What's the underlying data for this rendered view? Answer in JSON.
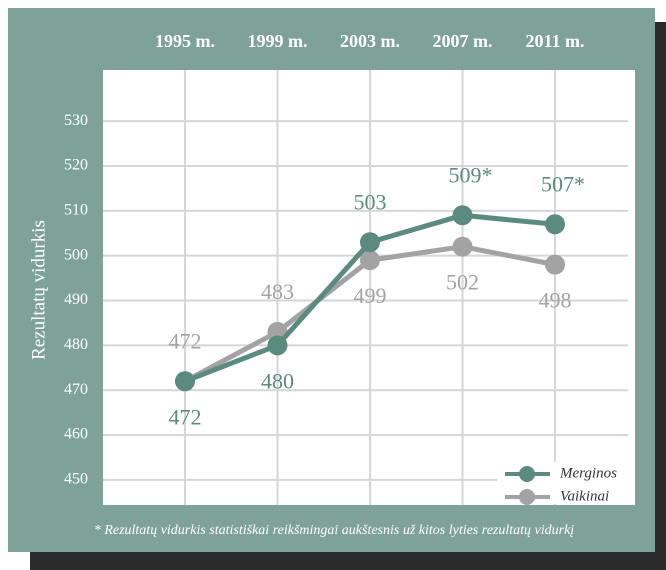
{
  "chart_data": {
    "type": "line",
    "ylabel": "Rezultatų vidurkis",
    "categories": [
      "1995 m.",
      "1999 m.",
      "2003 m.",
      "2007 m.",
      "2011 m."
    ],
    "series": [
      {
        "name": "Merginos",
        "color": "#5b8b7e",
        "values": [
          472,
          480,
          503,
          509,
          507
        ],
        "value_labels": [
          "472",
          "480",
          "503",
          "509*",
          "507*"
        ]
      },
      {
        "name": "Vaikinai",
        "color": "#a3a3a3",
        "values": [
          472,
          483,
          499,
          502,
          498
        ],
        "value_labels": [
          "472",
          "483",
          "499",
          "502",
          "498"
        ]
      }
    ],
    "ylim": [
      444.4,
      541.4
    ],
    "yticks": [
      450,
      460,
      470,
      480,
      490,
      500,
      510,
      520,
      530
    ],
    "grid": true,
    "legend": "lower right",
    "note": "* Rezultatų vidurkis statistiškai reikšmingai aukštesnis už kitos lyties rezultatų vidurkį"
  }
}
